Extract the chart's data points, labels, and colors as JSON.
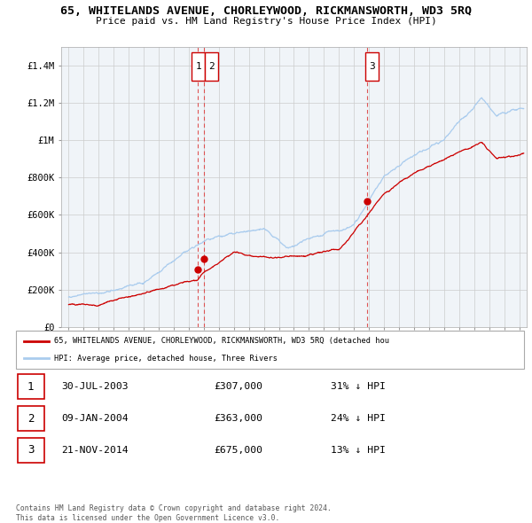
{
  "title": "65, WHITELANDS AVENUE, CHORLEYWOOD, RICKMANSWORTH, WD3 5RQ",
  "subtitle": "Price paid vs. HM Land Registry's House Price Index (HPI)",
  "legend_label_red": "65, WHITELANDS AVENUE, CHORLEYWOOD, RICKMANSWORTH, WD3 5RQ (detached hou",
  "legend_label_blue": "HPI: Average price, detached house, Three Rivers",
  "footer_line1": "Contains HM Land Registry data © Crown copyright and database right 2024.",
  "footer_line2": "This data is licensed under the Open Government Licence v3.0.",
  "table_rows": [
    {
      "num": "1",
      "date": "30-JUL-2003",
      "price": "£307,000",
      "note": "31% ↓ HPI"
    },
    {
      "num": "2",
      "date": "09-JAN-2004",
      "price": "£363,000",
      "note": "24% ↓ HPI"
    },
    {
      "num": "3",
      "date": "21-NOV-2014",
      "price": "£675,000",
      "note": "13% ↓ HPI"
    }
  ],
  "vline_dates": [
    2003.575,
    2004.025,
    2014.9
  ],
  "sale_points": [
    [
      2003.575,
      307000,
      "1"
    ],
    [
      2004.025,
      363000,
      "2"
    ],
    [
      2014.9,
      675000,
      "3"
    ]
  ],
  "label_box_positions": [
    [
      2003.575,
      "1"
    ],
    [
      2004.025,
      "2"
    ],
    [
      2014.9,
      "3"
    ]
  ],
  "ylim": [
    0,
    1500000
  ],
  "yticks": [
    0,
    200000,
    400000,
    600000,
    800000,
    1000000,
    1200000,
    1400000
  ],
  "ytick_labels": [
    "£0",
    "£200K",
    "£400K",
    "£600K",
    "£800K",
    "£1M",
    "£1.2M",
    "£1.4M"
  ],
  "xlim_left": 1994.5,
  "xlim_right": 2025.5,
  "red_color": "#cc0000",
  "blue_color": "#aaccee",
  "vline_color": "#dd4444",
  "grid_color": "#cccccc",
  "bg_chart": "#f0f4f8",
  "background_color": "#ffffff",
  "year_start": 1995,
  "year_end": 2025
}
